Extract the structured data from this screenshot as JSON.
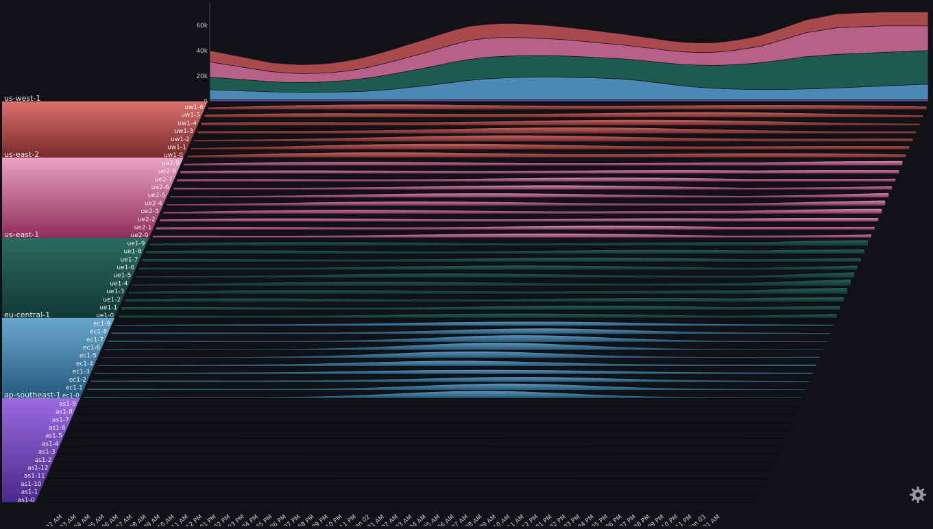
{
  "chart_data": {
    "type": "area",
    "stacked": true,
    "y_ticks": [
      "0",
      "20k",
      "40k",
      "60k"
    ],
    "ylim": [
      0,
      78000
    ],
    "x_tick_labels": [
      "02 AM",
      "03 AM",
      "04 AM",
      "05 AM",
      "06 AM",
      "07 AM",
      "08 AM",
      "09 AM",
      "10 AM",
      "11 AM",
      "12 PM",
      "01 PM",
      "02 PM",
      "03 PM",
      "04 PM",
      "05 PM",
      "06 PM",
      "07 PM",
      "08 PM",
      "09 PM",
      "10 PM",
      "11 PM",
      "Jan 02",
      "01 AM",
      "02 AM",
      "03 AM",
      "04 AM",
      "05 AM",
      "06 AM",
      "07 AM",
      "08 AM",
      "09 AM",
      "10 AM",
      "11 AM",
      "12 PM",
      "01 PM",
      "02 PM",
      "03 PM",
      "04 PM",
      "05 PM",
      "06 PM",
      "07 PM",
      "08 PM",
      "09 PM",
      "10 PM",
      "11 PM",
      "Mon 03",
      "01 AM"
    ],
    "summary_series": [
      {
        "name": "ap-southeast-1",
        "color": "#7d4fc4",
        "values": [
          1200,
          1200,
          1200,
          1200,
          1200,
          1200,
          1200,
          1200,
          1200,
          1200,
          1200,
          1200,
          1200,
          1200,
          1200,
          1200,
          1200,
          1200,
          1200,
          1200,
          1200,
          1200,
          1200,
          1200,
          1200,
          1200,
          1200,
          1200,
          1200,
          1200,
          1200,
          1200,
          1200,
          1200,
          1200,
          1200,
          1200,
          1200,
          1200,
          1200,
          1200,
          1200,
          1200,
          1200,
          1200,
          1200,
          1200,
          1200
        ]
      },
      {
        "name": "eu-central-1",
        "color": "#4b8ab4",
        "values": [
          8000,
          7600,
          7200,
          6800,
          6400,
          6100,
          6000,
          6000,
          6100,
          6400,
          6800,
          7500,
          8500,
          9800,
          11000,
          12500,
          14000,
          15500,
          16600,
          17300,
          17800,
          18000,
          18000,
          18000,
          17800,
          17500,
          17000,
          16500,
          15500,
          14000,
          12500,
          11000,
          10000,
          9200,
          8700,
          8400,
          8300,
          8300,
          8400,
          8700,
          9000,
          9500,
          10000,
          10500,
          11000,
          11500,
          12000,
          12500
        ]
      },
      {
        "name": "us-east-1",
        "color": "#1f5a52",
        "values": [
          10000,
          9500,
          9000,
          8500,
          8000,
          7800,
          7800,
          8000,
          8500,
          9000,
          10000,
          11000,
          12000,
          13000,
          14000,
          15000,
          16000,
          16500,
          17000,
          17000,
          17000,
          17000,
          17000,
          16800,
          16500,
          16200,
          16000,
          16000,
          16000,
          16200,
          16500,
          17000,
          17500,
          18000,
          19000,
          20000,
          21000,
          22500,
          24000,
          25500,
          26000,
          26500,
          26500,
          26500,
          26500,
          26500,
          26500,
          26500
        ]
      },
      {
        "name": "us-east-2",
        "color": "#b85f8a",
        "values": [
          12000,
          11000,
          10000,
          9000,
          8000,
          7500,
          7000,
          7000,
          7000,
          7500,
          8000,
          9000,
          10000,
          11000,
          12000,
          13000,
          14000,
          15000,
          15000,
          15000,
          14500,
          14000,
          13500,
          13000,
          12500,
          12000,
          11500,
          11000,
          10500,
          10500,
          10000,
          10000,
          10000,
          10500,
          11000,
          12000,
          13000,
          15000,
          17000,
          19000,
          20000,
          21000,
          21000,
          21000,
          21000,
          20500,
          20000,
          19500
        ]
      },
      {
        "name": "us-west-1",
        "color": "#a94a4f",
        "values": [
          9000,
          8500,
          8000,
          7500,
          7000,
          7000,
          7000,
          7200,
          7500,
          8000,
          8500,
          9000,
          9500,
          10000,
          10500,
          11000,
          11200,
          11200,
          11000,
          11000,
          11000,
          10800,
          10500,
          10000,
          9700,
          9400,
          9000,
          8600,
          8300,
          8000,
          7800,
          7600,
          7500,
          7500,
          7800,
          8000,
          8500,
          9000,
          9500,
          10000,
          10500,
          11000,
          11000,
          11000,
          11000,
          11000,
          11000,
          11000
        ]
      }
    ],
    "regions": [
      {
        "name": "us-west-1",
        "color_light": "#d9706d",
        "color_dark": "#7a2a2b",
        "hosts": [
          "uw1-6",
          "uw1-5",
          "uw1-4",
          "uw1-3",
          "uw1-2",
          "uw1-1",
          "uw1-0"
        ]
      },
      {
        "name": "us-east-2",
        "color_light": "#eaa2c4",
        "color_dark": "#8f2e5c",
        "hosts": [
          "ue2-9",
          "ue2-8",
          "ue2-7",
          "ue2-6",
          "ue2-5",
          "ue2-4",
          "ue2-3",
          "ue2-2",
          "ue2-1",
          "ue2-0"
        ]
      },
      {
        "name": "us-east-1",
        "color_light": "#2a6a5f",
        "color_dark": "#123a35",
        "hosts": [
          "ue1-9",
          "ue1-8",
          "ue1-7",
          "ue1-6",
          "ue1-5",
          "ue1-4",
          "ue1-3",
          "ue1-2",
          "ue1-1",
          "ue1-0"
        ]
      },
      {
        "name": "eu-central-1",
        "color_light": "#6aa7cf",
        "color_dark": "#245a7c",
        "hosts": [
          "ec1-9",
          "ec1-8",
          "ec1-7",
          "ec1-6",
          "ec1-5",
          "ec1-4",
          "ec1-3",
          "ec1-2",
          "ec1-1",
          "ec1-0"
        ]
      },
      {
        "name": "ap-southeast-1",
        "color_light": "#9a6ae0",
        "color_dark": "#4a2a8a",
        "hosts": [
          "as1-9",
          "as1-8",
          "as1-7",
          "as1-6",
          "as1-5",
          "as1-4",
          "as1-3",
          "as1-2",
          "as1-12",
          "as1-11",
          "as1-10",
          "as1-1",
          "as1-0"
        ]
      }
    ]
  },
  "settings_icon": "gear-icon"
}
